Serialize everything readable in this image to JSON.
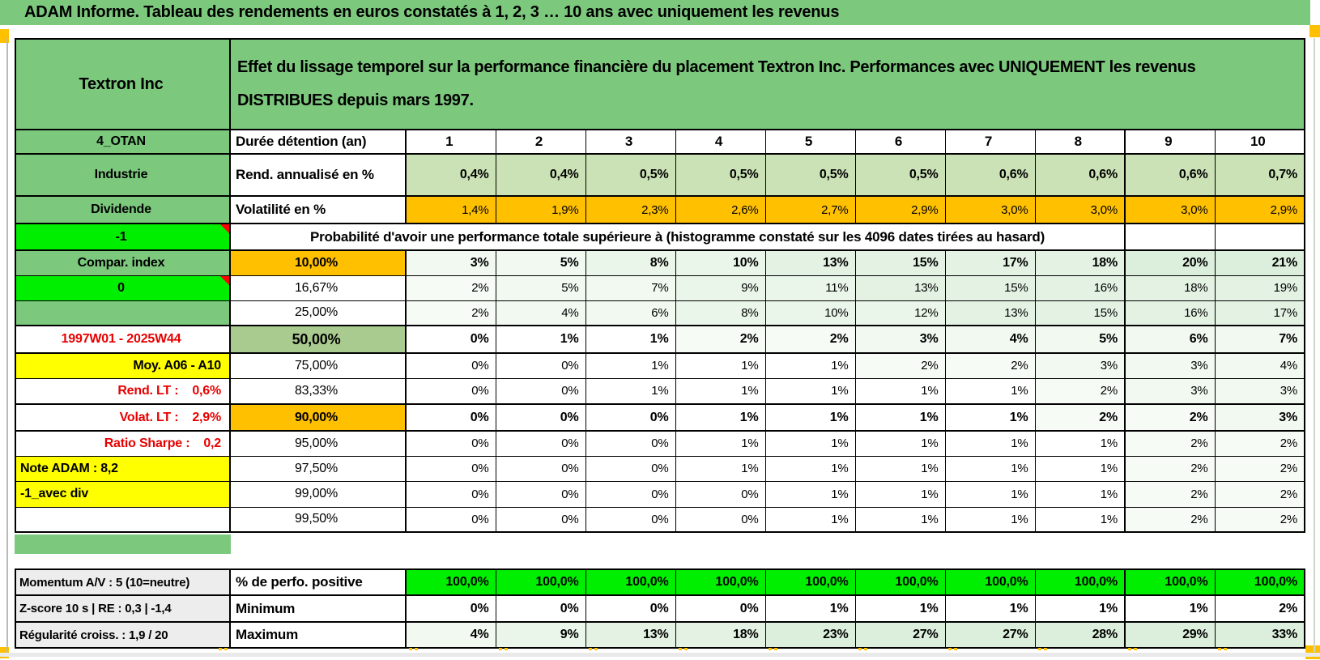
{
  "title_bar": "ADAM Informe. Tableau des rendements en euros constatés à 1, 2, 3 … 10 ans avec uniquement les revenus",
  "stock": {
    "name": "Textron Inc",
    "description": "Effet du lissage temporel sur la performance financière du placement Textron Inc. Performances avec UNIQUEMENT les revenus\nDISTRIBUES depuis mars 1997."
  },
  "colors": {
    "banner_green": "#7cc87d",
    "cell_light_green": "#cbe2b6",
    "median_green": "#a9cb8f",
    "flash_green": "#00ef00",
    "highlight_orange": "#ffc000",
    "highlight_yellow": "#ffff00",
    "label_gray": "#ededed",
    "alert_red": "#e80000"
  },
  "table": {
    "header_row": {
      "label": "4_OTAN",
      "metric": "Durée détention (an)",
      "years": [
        "1",
        "2",
        "3",
        "4",
        "5",
        "6",
        "7",
        "8",
        "9",
        "10"
      ]
    },
    "rend_row": {
      "label": "Industrie",
      "metric": "Rend. annualisé en %",
      "values": [
        "0,4%",
        "0,4%",
        "0,5%",
        "0,5%",
        "0,5%",
        "0,5%",
        "0,6%",
        "0,6%",
        "0,6%",
        "0,7%"
      ]
    },
    "volat_row": {
      "label": "Dividende",
      "metric": "Volatilité en %",
      "values": [
        "1,4%",
        "1,9%",
        "2,3%",
        "2,6%",
        "2,7%",
        "2,9%",
        "3,0%",
        "3,0%",
        "3,0%",
        "2,9%"
      ]
    },
    "prob_banner": {
      "label": "-1",
      "text": "Probabilité d'avoir une performance totale supérieure à (histogramme constaté sur les 4096 dates tirées au hasard)"
    },
    "prob_rows": [
      {
        "label": "Compar. index",
        "label_bg": "green",
        "threshold": "10,00%",
        "threshold_bg": "orange",
        "bold": true,
        "values": [
          "3%",
          "5%",
          "8%",
          "10%",
          "13%",
          "15%",
          "17%",
          "18%",
          "20%",
          "21%"
        ]
      },
      {
        "label": "0",
        "label_bg": "bright-green",
        "comment": true,
        "threshold": "16,67%",
        "values": [
          "2%",
          "5%",
          "7%",
          "9%",
          "11%",
          "13%",
          "15%",
          "16%",
          "18%",
          "19%"
        ]
      },
      {
        "label": "",
        "label_bg": "green",
        "threshold": "25,00%",
        "values": [
          "2%",
          "4%",
          "6%",
          "8%",
          "10%",
          "12%",
          "13%",
          "15%",
          "16%",
          "17%"
        ]
      },
      {
        "label": "1997W01 - 2025W44",
        "label_color": "red",
        "threshold": "50,00%",
        "threshold_bg": "light-green",
        "bold": true,
        "values": [
          "0%",
          "1%",
          "1%",
          "2%",
          "2%",
          "3%",
          "4%",
          "5%",
          "6%",
          "7%"
        ]
      },
      {
        "label": "Moy. A06 - A10",
        "label_bg": "yellow",
        "label_align": "right",
        "threshold": "75,00%",
        "values": [
          "0%",
          "0%",
          "1%",
          "1%",
          "1%",
          "2%",
          "2%",
          "3%",
          "3%",
          "4%"
        ]
      },
      {
        "label": "Rend. LT :    0,6%",
        "label_color": "red",
        "label_align": "right",
        "threshold": "83,33%",
        "values": [
          "0%",
          "0%",
          "1%",
          "1%",
          "1%",
          "1%",
          "1%",
          "2%",
          "3%",
          "3%"
        ]
      },
      {
        "label": "Volat. LT :    2,9%",
        "label_color": "red",
        "label_align": "right",
        "threshold": "90,00%",
        "threshold_bg": "orange",
        "bold": true,
        "values": [
          "0%",
          "0%",
          "0%",
          "1%",
          "1%",
          "1%",
          "1%",
          "2%",
          "2%",
          "3%"
        ]
      },
      {
        "label": "Ratio Sharpe :    0,2",
        "label_color": "red",
        "label_align": "right",
        "threshold": "95,00%",
        "values": [
          "0%",
          "0%",
          "0%",
          "1%",
          "1%",
          "1%",
          "1%",
          "1%",
          "2%",
          "2%"
        ]
      },
      {
        "label": "Note ADAM : 8,2",
        "label_bg": "yellow",
        "label_align": "left",
        "threshold": "97,50%",
        "values": [
          "0%",
          "0%",
          "0%",
          "1%",
          "1%",
          "1%",
          "1%",
          "1%",
          "2%",
          "2%"
        ]
      },
      {
        "label": "-1_avec div",
        "label_bg": "yellow",
        "label_align": "left",
        "threshold": "99,00%",
        "values": [
          "0%",
          "0%",
          "0%",
          "0%",
          "1%",
          "1%",
          "1%",
          "1%",
          "2%",
          "2%"
        ]
      },
      {
        "label": "",
        "threshold": "99,50%",
        "values": [
          "0%",
          "0%",
          "0%",
          "0%",
          "1%",
          "1%",
          "1%",
          "1%",
          "2%",
          "2%"
        ]
      }
    ]
  },
  "bottom": {
    "rows": [
      {
        "label": "Momentum A/V : 5 (10=neutre)",
        "metric": "% de perfo. positive",
        "style": "flash-green",
        "values": [
          "100,0%",
          "100,0%",
          "100,0%",
          "100,0%",
          "100,0%",
          "100,0%",
          "100,0%",
          "100,0%",
          "100,0%",
          "100,0%"
        ]
      },
      {
        "label": "Z-score 10 s | RE : 0,3 | -1,4",
        "metric": "Minimum",
        "style": "plain",
        "values": [
          "0%",
          "0%",
          "0%",
          "0%",
          "1%",
          "1%",
          "1%",
          "1%",
          "1%",
          "2%"
        ]
      },
      {
        "label": "Régularité croiss. : 1,9 / 20",
        "metric": "Maximum",
        "style": "tint",
        "values": [
          "4%",
          "9%",
          "13%",
          "18%",
          "23%",
          "27%",
          "27%",
          "28%",
          "29%",
          "33%"
        ]
      }
    ]
  }
}
